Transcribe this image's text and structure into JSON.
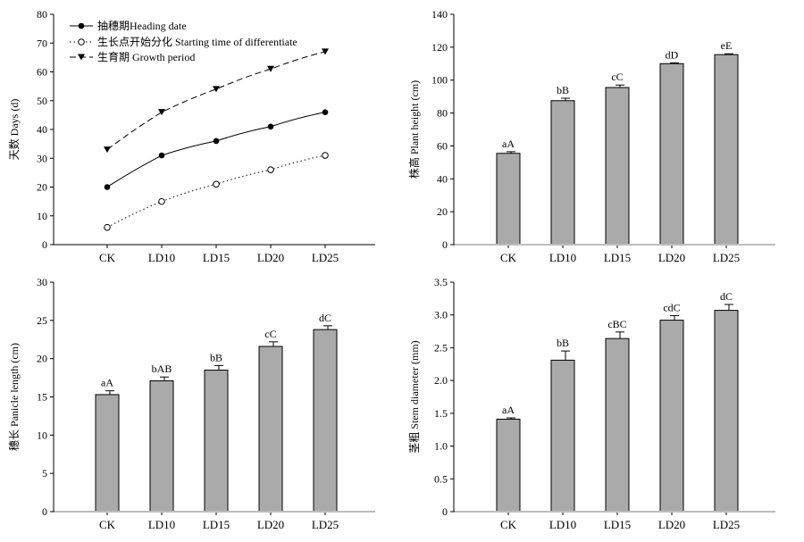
{
  "chart_data": [
    {
      "type": "line",
      "ylabel": "天数 Days (d)",
      "xlabel": "",
      "ylim": [
        0,
        80
      ],
      "yticks": [
        0,
        10,
        20,
        30,
        40,
        50,
        60,
        70,
        80
      ],
      "categories": [
        "CK",
        "LD10",
        "LD15",
        "LD20",
        "LD25"
      ],
      "legend_position": "top-left",
      "series": [
        {
          "name": "抽穗期Heading date",
          "values": [
            20,
            31,
            36,
            41,
            46
          ],
          "marker": "filled-circle",
          "line": "solid"
        },
        {
          "name": "生长点开始分化 Starting time of differentiate",
          "values": [
            6,
            15,
            21,
            26,
            31
          ],
          "marker": "open-circle",
          "line": "dotted"
        },
        {
          "name": "生育期 Growth period",
          "values": [
            33,
            46,
            54,
            61,
            67
          ],
          "marker": "filled-triangle-down",
          "line": "dashed"
        }
      ]
    },
    {
      "type": "bar",
      "ylabel": "株高 Plant height (cm)",
      "xlabel": "",
      "ylim": [
        0,
        140
      ],
      "yticks": [
        0,
        20,
        40,
        60,
        80,
        100,
        120,
        140
      ],
      "categories": [
        "CK",
        "LD10",
        "LD15",
        "LD20",
        "LD25"
      ],
      "values": [
        55.5,
        87.5,
        95.5,
        110,
        115.5
      ],
      "errors": [
        1,
        1.5,
        1.5,
        0.5,
        0.5
      ],
      "labels": [
        "aA",
        "bB",
        "cC",
        "dD",
        "eE"
      ]
    },
    {
      "type": "bar",
      "ylabel": "穗长 Panicle length (cm)",
      "xlabel": "",
      "ylim": [
        0,
        30
      ],
      "yticks": [
        0,
        5,
        10,
        15,
        20,
        25,
        30
      ],
      "categories": [
        "CK",
        "LD10",
        "LD15",
        "LD20",
        "LD25"
      ],
      "values": [
        15.3,
        17.1,
        18.5,
        21.6,
        23.8
      ],
      "errors": [
        0.5,
        0.5,
        0.6,
        0.6,
        0.5
      ],
      "labels": [
        "aA",
        "bAB",
        "bB",
        "cC",
        "dC"
      ]
    },
    {
      "type": "bar",
      "ylabel": "茎粗 Stem diameter (mm)",
      "xlabel": "",
      "ylim": [
        0,
        3.5
      ],
      "yticks": [
        "0",
        "0.5",
        "1.0",
        "1.5",
        "2.0",
        "2.5",
        "3.0",
        "3.5"
      ],
      "categories": [
        "CK",
        "LD10",
        "LD15",
        "LD20",
        "LD25"
      ],
      "values": [
        1.41,
        2.31,
        2.64,
        2.92,
        3.07
      ],
      "errors": [
        0.02,
        0.14,
        0.1,
        0.07,
        0.09
      ],
      "labels": [
        "aA",
        "bB",
        "cBC",
        "cdC",
        "dC"
      ]
    }
  ]
}
